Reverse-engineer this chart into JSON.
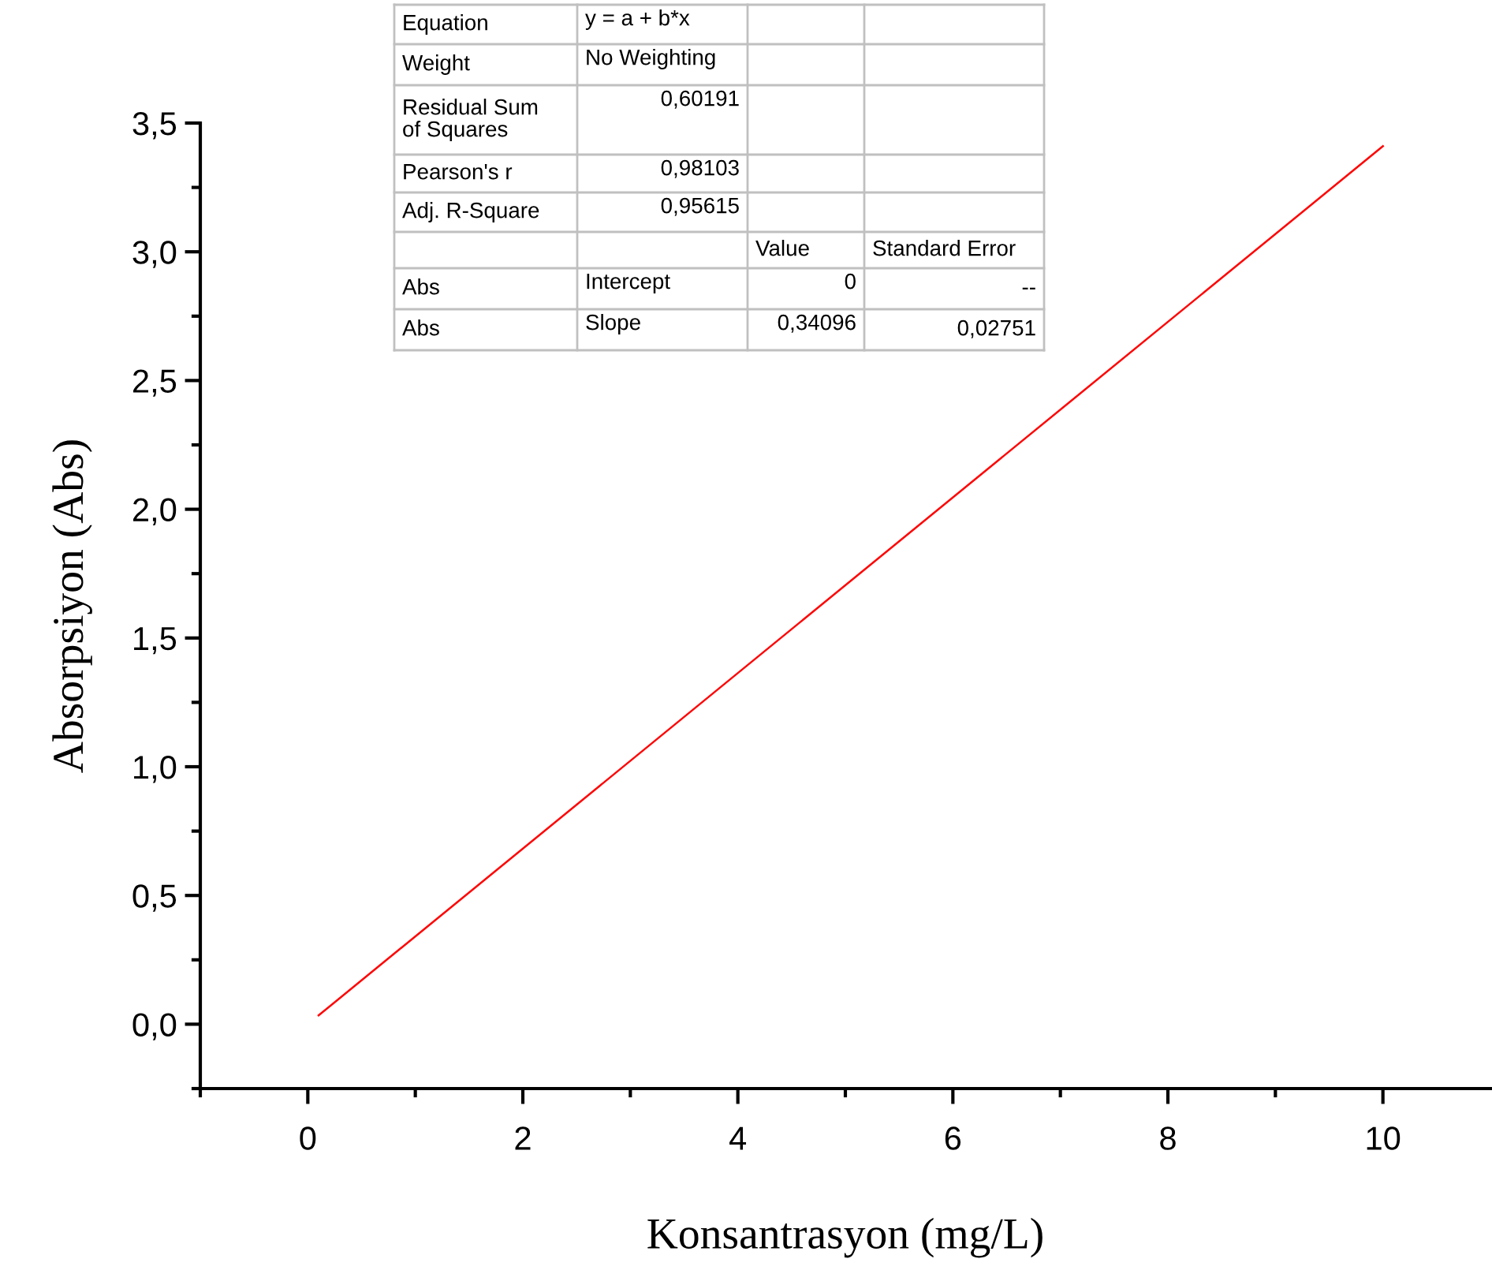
{
  "chart_data": {
    "type": "line",
    "xlabel": "Konsantrasyon (mg/L)",
    "ylabel": "Absorpsiyon (Abs)",
    "xlim": [
      -1,
      11
    ],
    "ylim": [
      -0.25,
      3.5
    ],
    "xticks": [
      {
        "value": -1,
        "label": null
      },
      {
        "value": 0,
        "label": "0"
      },
      {
        "value": 1,
        "label": null
      },
      {
        "value": 2,
        "label": "2"
      },
      {
        "value": 3,
        "label": null
      },
      {
        "value": 4,
        "label": "4"
      },
      {
        "value": 5,
        "label": null
      },
      {
        "value": 6,
        "label": "6"
      },
      {
        "value": 7,
        "label": null
      },
      {
        "value": 8,
        "label": "8"
      },
      {
        "value": 9,
        "label": null
      },
      {
        "value": 10,
        "label": "10"
      }
    ],
    "yticks": [
      {
        "value": -0.25,
        "label": null
      },
      {
        "value": 0,
        "label": "0,0"
      },
      {
        "value": 0.25,
        "label": null
      },
      {
        "value": 0.5,
        "label": "0,5"
      },
      {
        "value": 0.75,
        "label": null
      },
      {
        "value": 1,
        "label": "1,0"
      },
      {
        "value": 1.25,
        "label": null
      },
      {
        "value": 1.5,
        "label": "1,5"
      },
      {
        "value": 1.75,
        "label": null
      },
      {
        "value": 2,
        "label": "2,0"
      },
      {
        "value": 2.25,
        "label": null
      },
      {
        "value": 2.5,
        "label": "2,5"
      },
      {
        "value": 2.75,
        "label": null
      },
      {
        "value": 3,
        "label": "3,0"
      },
      {
        "value": 3.25,
        "label": null
      },
      {
        "value": 3.5,
        "label": "3,5"
      }
    ],
    "x": [
      0.1,
      10
    ],
    "series": [
      {
        "color": "#ff0000",
        "values": [
          0.034,
          3.41
        ]
      }
    ],
    "grid": false,
    "legend": false,
    "marker": "none",
    "line_style": "solid",
    "annotations": [
      "Equation",
      "y = a + b*x",
      "Weight",
      "No Weighting",
      "Residual Sum\nof Squares",
      "0,60191",
      "Pearson's r",
      "0,98103",
      "Adj. R-Square",
      "0,95615",
      "Value",
      "Standard Error",
      "Abs",
      "Intercept",
      "0",
      "--",
      "Abs",
      "Slope",
      "0,34096",
      "0,02751"
    ]
  }
}
